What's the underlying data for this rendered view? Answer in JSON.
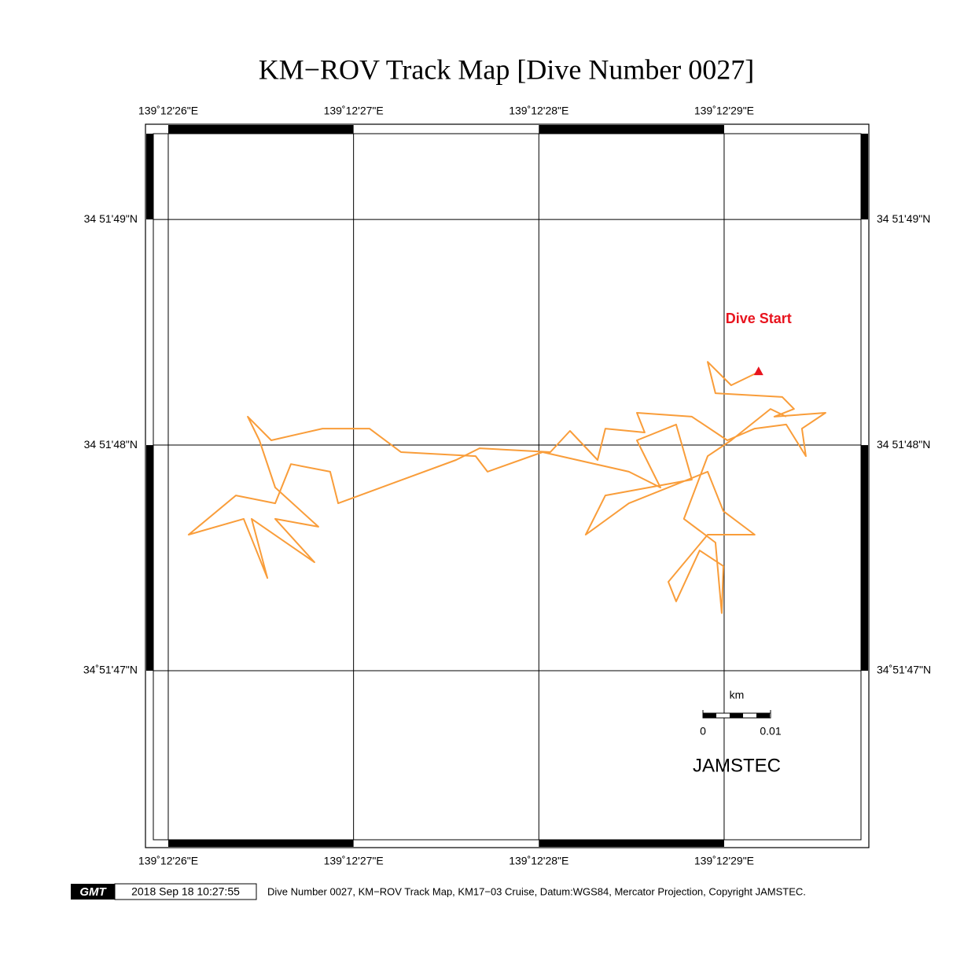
{
  "chart_data": {
    "type": "line",
    "title": "KM−ROV Track Map [Dive Number 0027]",
    "xlim": [
      25.877,
      29.781
    ],
    "ylim": [
      46.216,
      49.422
    ],
    "xticks": [
      {
        "value": 26,
        "label": "139˚12'26\"E"
      },
      {
        "value": 27,
        "label": "139˚12'27\"E"
      },
      {
        "value": 28,
        "label": "139˚12'28\"E"
      },
      {
        "value": 29,
        "label": "139˚12'29\"E"
      }
    ],
    "yticks": [
      {
        "value": 47,
        "label": "34˚51'47\"N"
      },
      {
        "value": 48,
        "label": "34 51'48\"N"
      },
      {
        "value": 49,
        "label": "34 51'49\"N"
      }
    ],
    "grid": true,
    "color": "#f99d3a",
    "x": [
      29.186,
      29.038,
      28.911,
      28.953,
      29.314,
      29.377,
      29.271,
      29.547,
      29.42,
      29.441,
      29.335,
      29.165,
      29.017,
      28.826,
      28.529,
      28.571,
      28.359,
      28.317,
      28.168,
      28.062,
      27.68,
      27.553,
      26.917,
      26.874,
      26.662,
      26.577,
      26.365,
      26.11,
      26.407,
      26.535,
      26.45,
      26.789,
      26.577,
      26.81,
      26.577,
      26.492,
      26.429,
      26.556,
      26.832,
      27.086,
      27.256,
      27.659,
      27.723,
      28.02,
      28.486,
      28.656,
      28.529,
      28.741,
      28.826,
      28.359,
      28.253,
      28.486,
      28.911,
      28.996,
      29.165,
      28.911,
      28.699,
      28.741,
      28.868,
      28.996,
      28.987,
      28.953,
      28.783,
      28.911,
      29.038,
      29.25,
      29.335
    ],
    "values": [
      48.324,
      48.265,
      48.369,
      48.23,
      48.213,
      48.16,
      48.126,
      48.143,
      48.073,
      47.951,
      48.091,
      48.073,
      48.021,
      48.126,
      48.143,
      48.056,
      48.073,
      47.934,
      48.063,
      47.969,
      47.986,
      47.934,
      47.742,
      47.882,
      47.916,
      47.742,
      47.777,
      47.603,
      47.673,
      47.411,
      47.673,
      47.481,
      47.673,
      47.638,
      47.812,
      48.021,
      48.126,
      48.021,
      48.073,
      48.073,
      47.969,
      47.951,
      47.882,
      47.969,
      47.882,
      47.812,
      48.021,
      48.091,
      47.847,
      47.777,
      47.603,
      47.742,
      47.882,
      47.707,
      47.603,
      47.603,
      47.394,
      47.307,
      47.533,
      47.464,
      47.255,
      47.568,
      47.673,
      47.951,
      48.021,
      48.16,
      48.126
    ],
    "annotation": "Dive Start",
    "scale_bar": {
      "unit": "km",
      "start": "0",
      "end": "0.01"
    },
    "watermark": "JAMSTEC",
    "footer": {
      "logo": "GMT",
      "timestamp": "2018 Sep 18 10:27:55",
      "caption": "Dive Number 0027, KM−ROV Track Map, KM17−03 Cruise, Datum:WGS84, Mercator Projection, Copyright JAMSTEC."
    }
  }
}
